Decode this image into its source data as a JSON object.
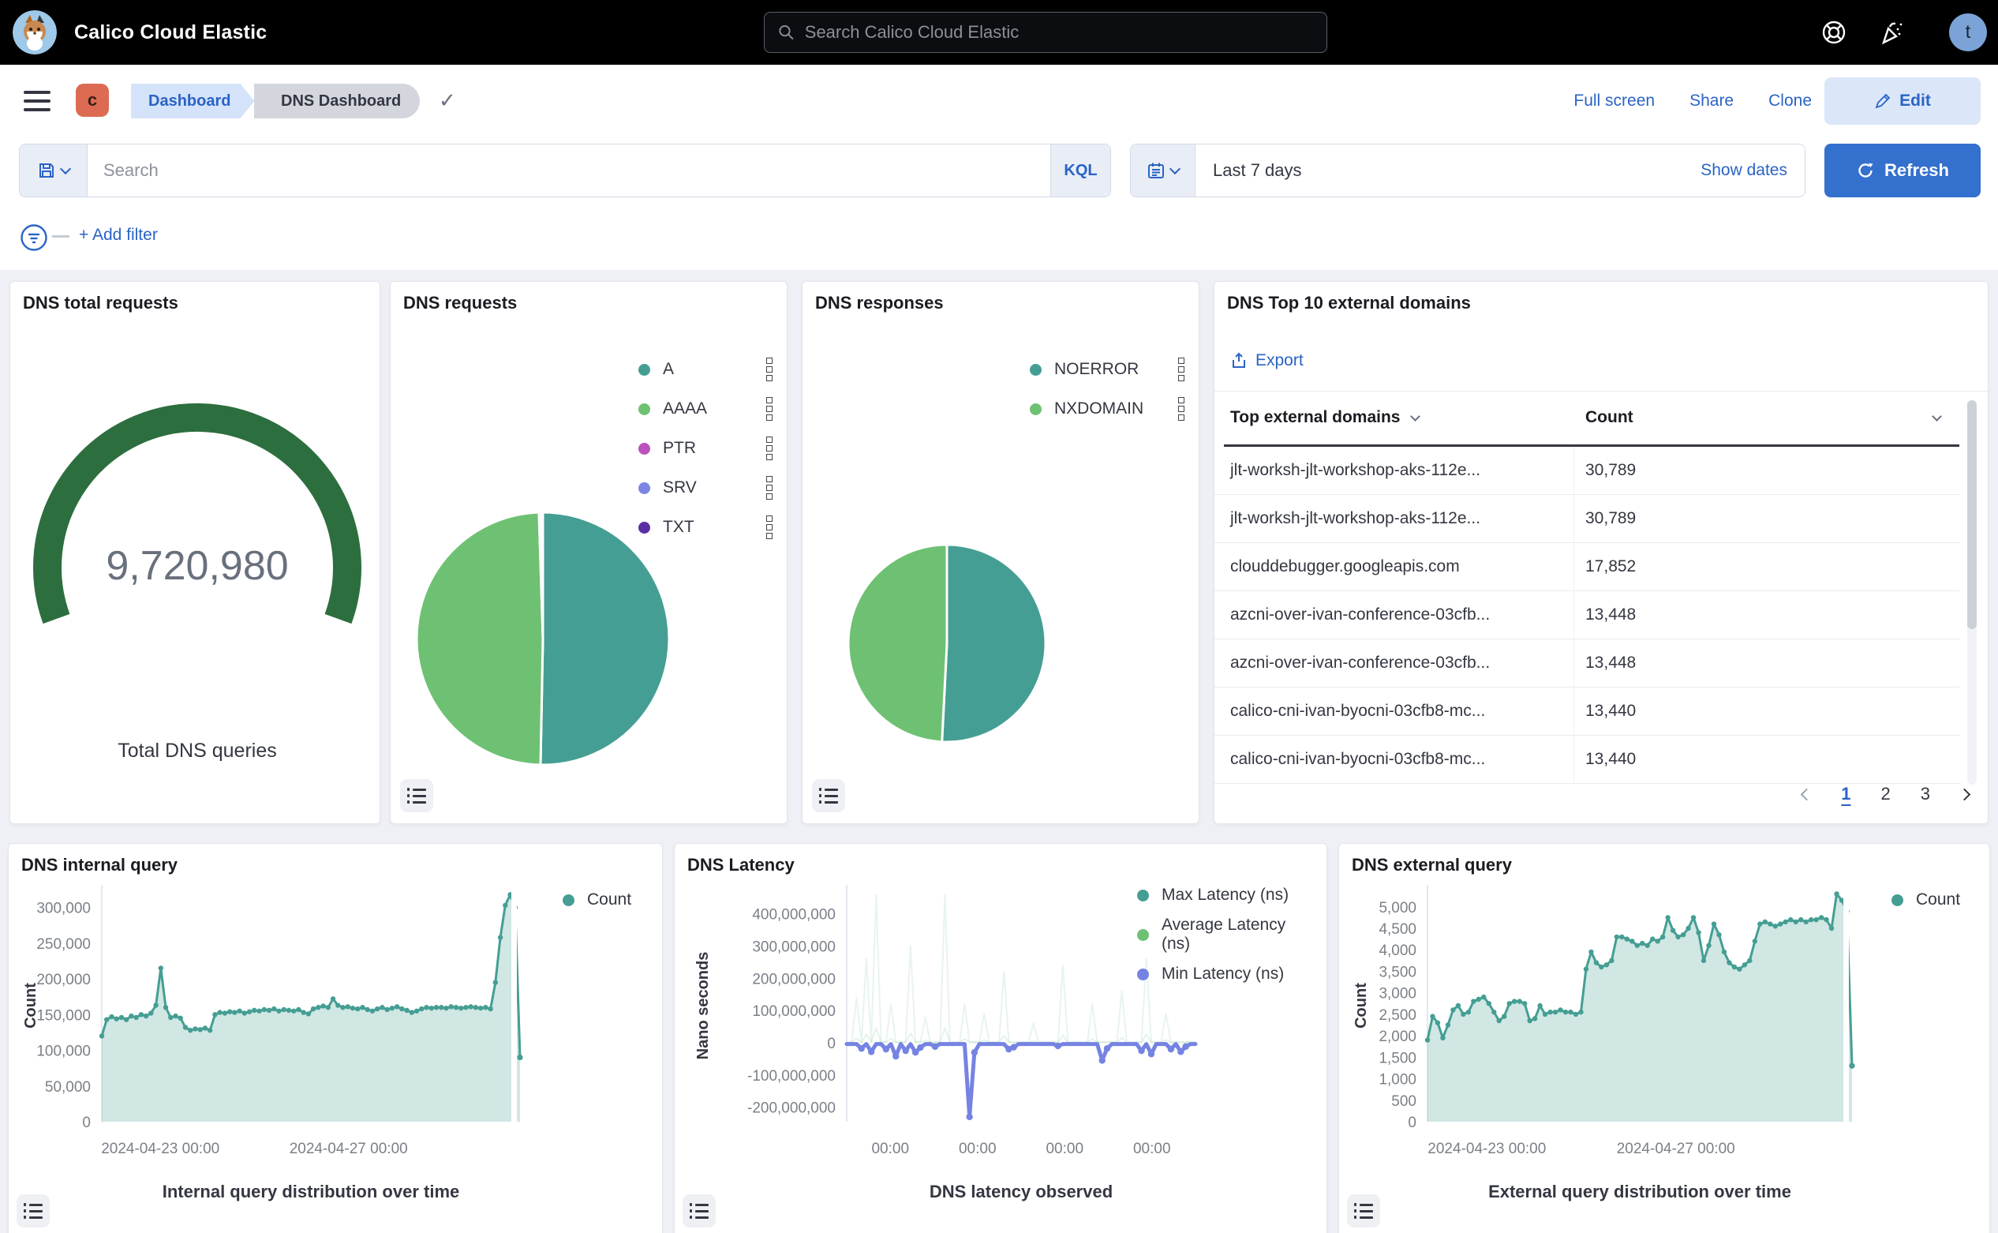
{
  "header": {
    "app_title": "Calico Cloud Elastic",
    "search_placeholder": "Search Calico Cloud Elastic",
    "avatar_initial": "t",
    "icons": [
      "help-icon",
      "news-icon"
    ]
  },
  "toolbar": {
    "space_initial": "c",
    "breadcrumbs": [
      "Dashboard",
      "DNS Dashboard"
    ],
    "actions": [
      "Full screen",
      "Share",
      "Clone"
    ],
    "edit_label": "Edit"
  },
  "query_bar": {
    "search_placeholder": "Search",
    "kql_label": "KQL",
    "time_range": "Last 7 days",
    "show_dates_label": "Show dates",
    "refresh_label": "Refresh",
    "add_filter_label": "+ Add filter"
  },
  "colors": {
    "primary_blue": "#2a63c6",
    "refresh_blue": "#3470cd",
    "teal_series": "#459e93",
    "green_series": "#6ec173",
    "gauge_green": "#2d6e3e",
    "min_latency_purple": "#7583e2"
  },
  "chart_data": [
    {
      "id": "dns_total_requests",
      "type": "gauge",
      "title": "DNS total requests",
      "value": 9720980,
      "value_label": "9,720,980",
      "caption": "Total DNS queries",
      "color": "#2d6e3e"
    },
    {
      "id": "dns_requests",
      "type": "pie",
      "title": "DNS requests",
      "legend_position": "right",
      "slices": [
        {
          "label": "A",
          "value": 50.3,
          "color": "#459e93"
        },
        {
          "label": "AAAA",
          "value": 49.2,
          "color": "#6ec173"
        },
        {
          "label": "PTR",
          "value": 0.25,
          "color": "#bc52bc"
        },
        {
          "label": "SRV",
          "value": 0.15,
          "color": "#7c86e2"
        },
        {
          "label": "TXT",
          "value": 0.1,
          "color": "#5b2ea6"
        }
      ]
    },
    {
      "id": "dns_responses",
      "type": "pie",
      "title": "DNS responses",
      "legend_position": "right",
      "slices": [
        {
          "label": "NOERROR",
          "value": 50.8,
          "color": "#459e93"
        },
        {
          "label": "NXDOMAIN",
          "value": 49.2,
          "color": "#6ec173"
        }
      ]
    },
    {
      "id": "dns_top10_external_domains",
      "type": "table",
      "title": "DNS Top 10 external domains",
      "export_label": "Export",
      "columns": [
        "Top external domains",
        "Count"
      ],
      "rows": [
        {
          "domain": "jlt-worksh-jlt-workshop-aks-112e...",
          "count": "30,789"
        },
        {
          "domain": "jlt-worksh-jlt-workshop-aks-112e...",
          "count": "30,789"
        },
        {
          "domain": "clouddebugger.googleapis.com",
          "count": "17,852"
        },
        {
          "domain": "azcni-over-ivan-conference-03cfb...",
          "count": "13,448"
        },
        {
          "domain": "azcni-over-ivan-conference-03cfb...",
          "count": "13,448"
        },
        {
          "domain": "calico-cni-ivan-byocni-03cfb8-mc...",
          "count": "13,440"
        },
        {
          "domain": "calico-cni-ivan-byocni-03cfb8-mc...",
          "count": "13,440"
        }
      ],
      "pagination": {
        "pages": [
          "1",
          "2",
          "3"
        ],
        "active": "1"
      }
    },
    {
      "id": "dns_internal_query",
      "type": "area",
      "title": "DNS internal query",
      "ylabel": "Count",
      "xlabel": "Internal query distribution over time",
      "ylim": [
        0,
        325000
      ],
      "gap_before_last": true,
      "yticks": [
        {
          "v": 0,
          "label": "0"
        },
        {
          "v": 50000,
          "label": "50,000"
        },
        {
          "v": 100000,
          "label": "100,000"
        },
        {
          "v": 150000,
          "label": "150,000"
        },
        {
          "v": 200000,
          "label": "200,000"
        },
        {
          "v": 250000,
          "label": "250,000"
        },
        {
          "v": 300000,
          "label": "300,000"
        }
      ],
      "xticks": [
        {
          "pos": 0.14,
          "label": "2024-04-23 00:00"
        },
        {
          "pos": 0.59,
          "label": "2024-04-27 00:00"
        }
      ],
      "series": [
        {
          "name": "Count",
          "color": "#459e93",
          "fill": "rgba(69,158,147,0.25)",
          "width": 3,
          "marker": "all",
          "values": [
            120000,
            143000,
            147000,
            144000,
            146000,
            143000,
            148000,
            146000,
            150000,
            148000,
            152000,
            163000,
            215000,
            160000,
            146000,
            148000,
            145000,
            132000,
            128000,
            130000,
            129000,
            131000,
            128000,
            150000,
            153000,
            152000,
            154000,
            153000,
            155000,
            152000,
            154000,
            156000,
            155000,
            157000,
            156000,
            158000,
            155000,
            157000,
            156000,
            155000,
            157000,
            153000,
            151000,
            158000,
            160000,
            162000,
            160000,
            172000,
            163000,
            160000,
            161000,
            159000,
            158000,
            160000,
            157000,
            155000,
            158000,
            160000,
            157000,
            159000,
            161000,
            158000,
            156000,
            153000,
            155000,
            158000,
            160000,
            159000,
            160000,
            160000,
            159000,
            161000,
            160000,
            159000,
            160000,
            161000,
            160000,
            159000,
            160000,
            158000,
            195000,
            258000,
            303000,
            318000,
            300000,
            90000
          ]
        }
      ]
    },
    {
      "id": "dns_latency",
      "type": "line",
      "title": "DNS Latency",
      "ylabel": "Nano seconds",
      "xlabel": "DNS latency observed",
      "ylim": [
        -245000000,
        475000000
      ],
      "gap_before_last": false,
      "yticks": [
        {
          "v": -200000000,
          "label": "-200,000,000"
        },
        {
          "v": -100000000,
          "label": "-100,000,000"
        },
        {
          "v": 0,
          "label": "0"
        },
        {
          "v": 100000000,
          "label": "100,000,000"
        },
        {
          "v": 200000000,
          "label": "200,000,000"
        },
        {
          "v": 300000000,
          "label": "300,000,000"
        },
        {
          "v": 400000000,
          "label": "400,000,000"
        }
      ],
      "xticks": [
        {
          "pos": 0.125,
          "label": "00:00"
        },
        {
          "pos": 0.375,
          "label": "00:00"
        },
        {
          "pos": 0.625,
          "label": "00:00"
        },
        {
          "pos": 0.875,
          "label": "00:00"
        }
      ],
      "series": [
        {
          "name": "Max Latency (ns)",
          "color": "#459e93",
          "width": 2,
          "draw_opacity": 0.12,
          "marker": "none",
          "values": [
            2000000,
            2000000,
            140000000,
            2000000,
            260000000,
            2000000,
            460000000,
            2000000,
            2000000,
            120000000,
            2000000,
            2000000,
            2000000,
            300000000,
            2000000,
            2000000,
            80000000,
            2000000,
            2000000,
            2000000,
            460000000,
            2000000,
            2000000,
            2000000,
            120000000,
            2000000,
            2000000,
            2000000,
            90000000,
            2000000,
            2000000,
            2000000,
            220000000,
            2000000,
            2000000,
            2000000,
            2000000,
            2000000,
            60000000,
            2000000,
            2000000,
            2000000,
            2000000,
            2000000,
            240000000,
            2000000,
            2000000,
            2000000,
            2000000,
            2000000,
            120000000,
            2000000,
            2000000,
            2000000,
            2000000,
            2000000,
            160000000,
            2000000,
            2000000,
            2000000,
            2000000,
            260000000,
            2000000,
            2000000,
            2000000,
            90000000,
            2000000,
            2000000,
            2000000,
            2000000,
            2000000,
            2000000
          ]
        },
        {
          "name": "Average Latency (ns)",
          "color": "#6ec173",
          "width": 2,
          "draw_opacity": 0.18,
          "marker": "none",
          "values": [
            1000000,
            1000000,
            14000000,
            1000000,
            26000000,
            1000000,
            46000000,
            1000000,
            1000000,
            12000000,
            1000000,
            1000000,
            1000000,
            30000000,
            1000000,
            1000000,
            8000000,
            1000000,
            1000000,
            1000000,
            46000000,
            1000000,
            1000000,
            1000000,
            12000000,
            1000000,
            1000000,
            1000000,
            9000000,
            1000000,
            1000000,
            1000000,
            22000000,
            1000000,
            1000000,
            1000000,
            1000000,
            1000000,
            6000000,
            1000000,
            1000000,
            1000000,
            1000000,
            1000000,
            24000000,
            1000000,
            1000000,
            1000000,
            1000000,
            1000000,
            12000000,
            1000000,
            1000000,
            1000000,
            1000000,
            1000000,
            16000000,
            1000000,
            1000000,
            1000000,
            1000000,
            26000000,
            1000000,
            1000000,
            1000000,
            9000000,
            1000000,
            1000000,
            1000000,
            1000000,
            1000000,
            1000000
          ]
        },
        {
          "name": "Min Latency (ns)",
          "color": "#7583e2",
          "width": 5,
          "draw_opacity": 1,
          "marker": "dips",
          "marker_below": -8000000,
          "values": [
            -4000000,
            -4000000,
            -4000000,
            -18000000,
            -4000000,
            -28000000,
            -4000000,
            -4000000,
            -20000000,
            -4000000,
            -42000000,
            -4000000,
            -25000000,
            -4000000,
            -30000000,
            -15000000,
            -4000000,
            -4000000,
            -12000000,
            -4000000,
            -4000000,
            -4000000,
            -4000000,
            -4000000,
            -4000000,
            -230000000,
            -30000000,
            -4000000,
            -4000000,
            -4000000,
            -4000000,
            -4000000,
            -4000000,
            -20000000,
            -14000000,
            -4000000,
            -4000000,
            -4000000,
            -4000000,
            -4000000,
            -4000000,
            -4000000,
            -4000000,
            -10000000,
            -4000000,
            -4000000,
            -4000000,
            -4000000,
            -4000000,
            -4000000,
            -4000000,
            -4000000,
            -55000000,
            -18000000,
            -4000000,
            -4000000,
            -4000000,
            -4000000,
            -4000000,
            -4000000,
            -25000000,
            -4000000,
            -35000000,
            -4000000,
            -4000000,
            -4000000,
            -20000000,
            -4000000,
            -28000000,
            -12000000,
            -4000000,
            -4000000
          ]
        }
      ]
    },
    {
      "id": "dns_external_query",
      "type": "area",
      "title": "DNS external query",
      "ylabel": "Count",
      "xlabel": "External query distribution over time",
      "ylim": [
        0,
        5400
      ],
      "gap_before_last": true,
      "yticks": [
        {
          "v": 0,
          "label": "0"
        },
        {
          "v": 500,
          "label": "500"
        },
        {
          "v": 1000,
          "label": "1,000"
        },
        {
          "v": 1500,
          "label": "1,500"
        },
        {
          "v": 2000,
          "label": "2,000"
        },
        {
          "v": 2500,
          "label": "2,500"
        },
        {
          "v": 3000,
          "label": "3,000"
        },
        {
          "v": 3500,
          "label": "3,500"
        },
        {
          "v": 4000,
          "label": "4,000"
        },
        {
          "v": 4500,
          "label": "4,500"
        },
        {
          "v": 5000,
          "label": "5,000"
        }
      ],
      "xticks": [
        {
          "pos": 0.14,
          "label": "2024-04-23 00:00"
        },
        {
          "pos": 0.585,
          "label": "2024-04-27 00:00"
        }
      ],
      "series": [
        {
          "name": "Count",
          "color": "#459e93",
          "fill": "rgba(69,158,147,0.25)",
          "width": 3,
          "marker": "all",
          "values": [
            1900,
            2450,
            2300,
            1950,
            2250,
            2600,
            2700,
            2500,
            2550,
            2800,
            2850,
            2900,
            2750,
            2550,
            2350,
            2450,
            2750,
            2800,
            2800,
            2750,
            2350,
            2400,
            2700,
            2500,
            2550,
            2550,
            2600,
            2550,
            2550,
            2500,
            2550,
            3550,
            3950,
            3700,
            3600,
            3650,
            3750,
            4300,
            4300,
            4250,
            4200,
            4100,
            4150,
            4100,
            4250,
            4200,
            4300,
            4750,
            4450,
            4300,
            4350,
            4500,
            4750,
            4400,
            3750,
            4100,
            4600,
            4350,
            3950,
            3700,
            3600,
            3550,
            3650,
            3750,
            4200,
            4600,
            4650,
            4600,
            4550,
            4600,
            4650,
            4700,
            4650,
            4700,
            4650,
            4700,
            4700,
            4750,
            4700,
            4500,
            5300,
            5150,
            4900,
            1300
          ]
        }
      ]
    }
  ]
}
